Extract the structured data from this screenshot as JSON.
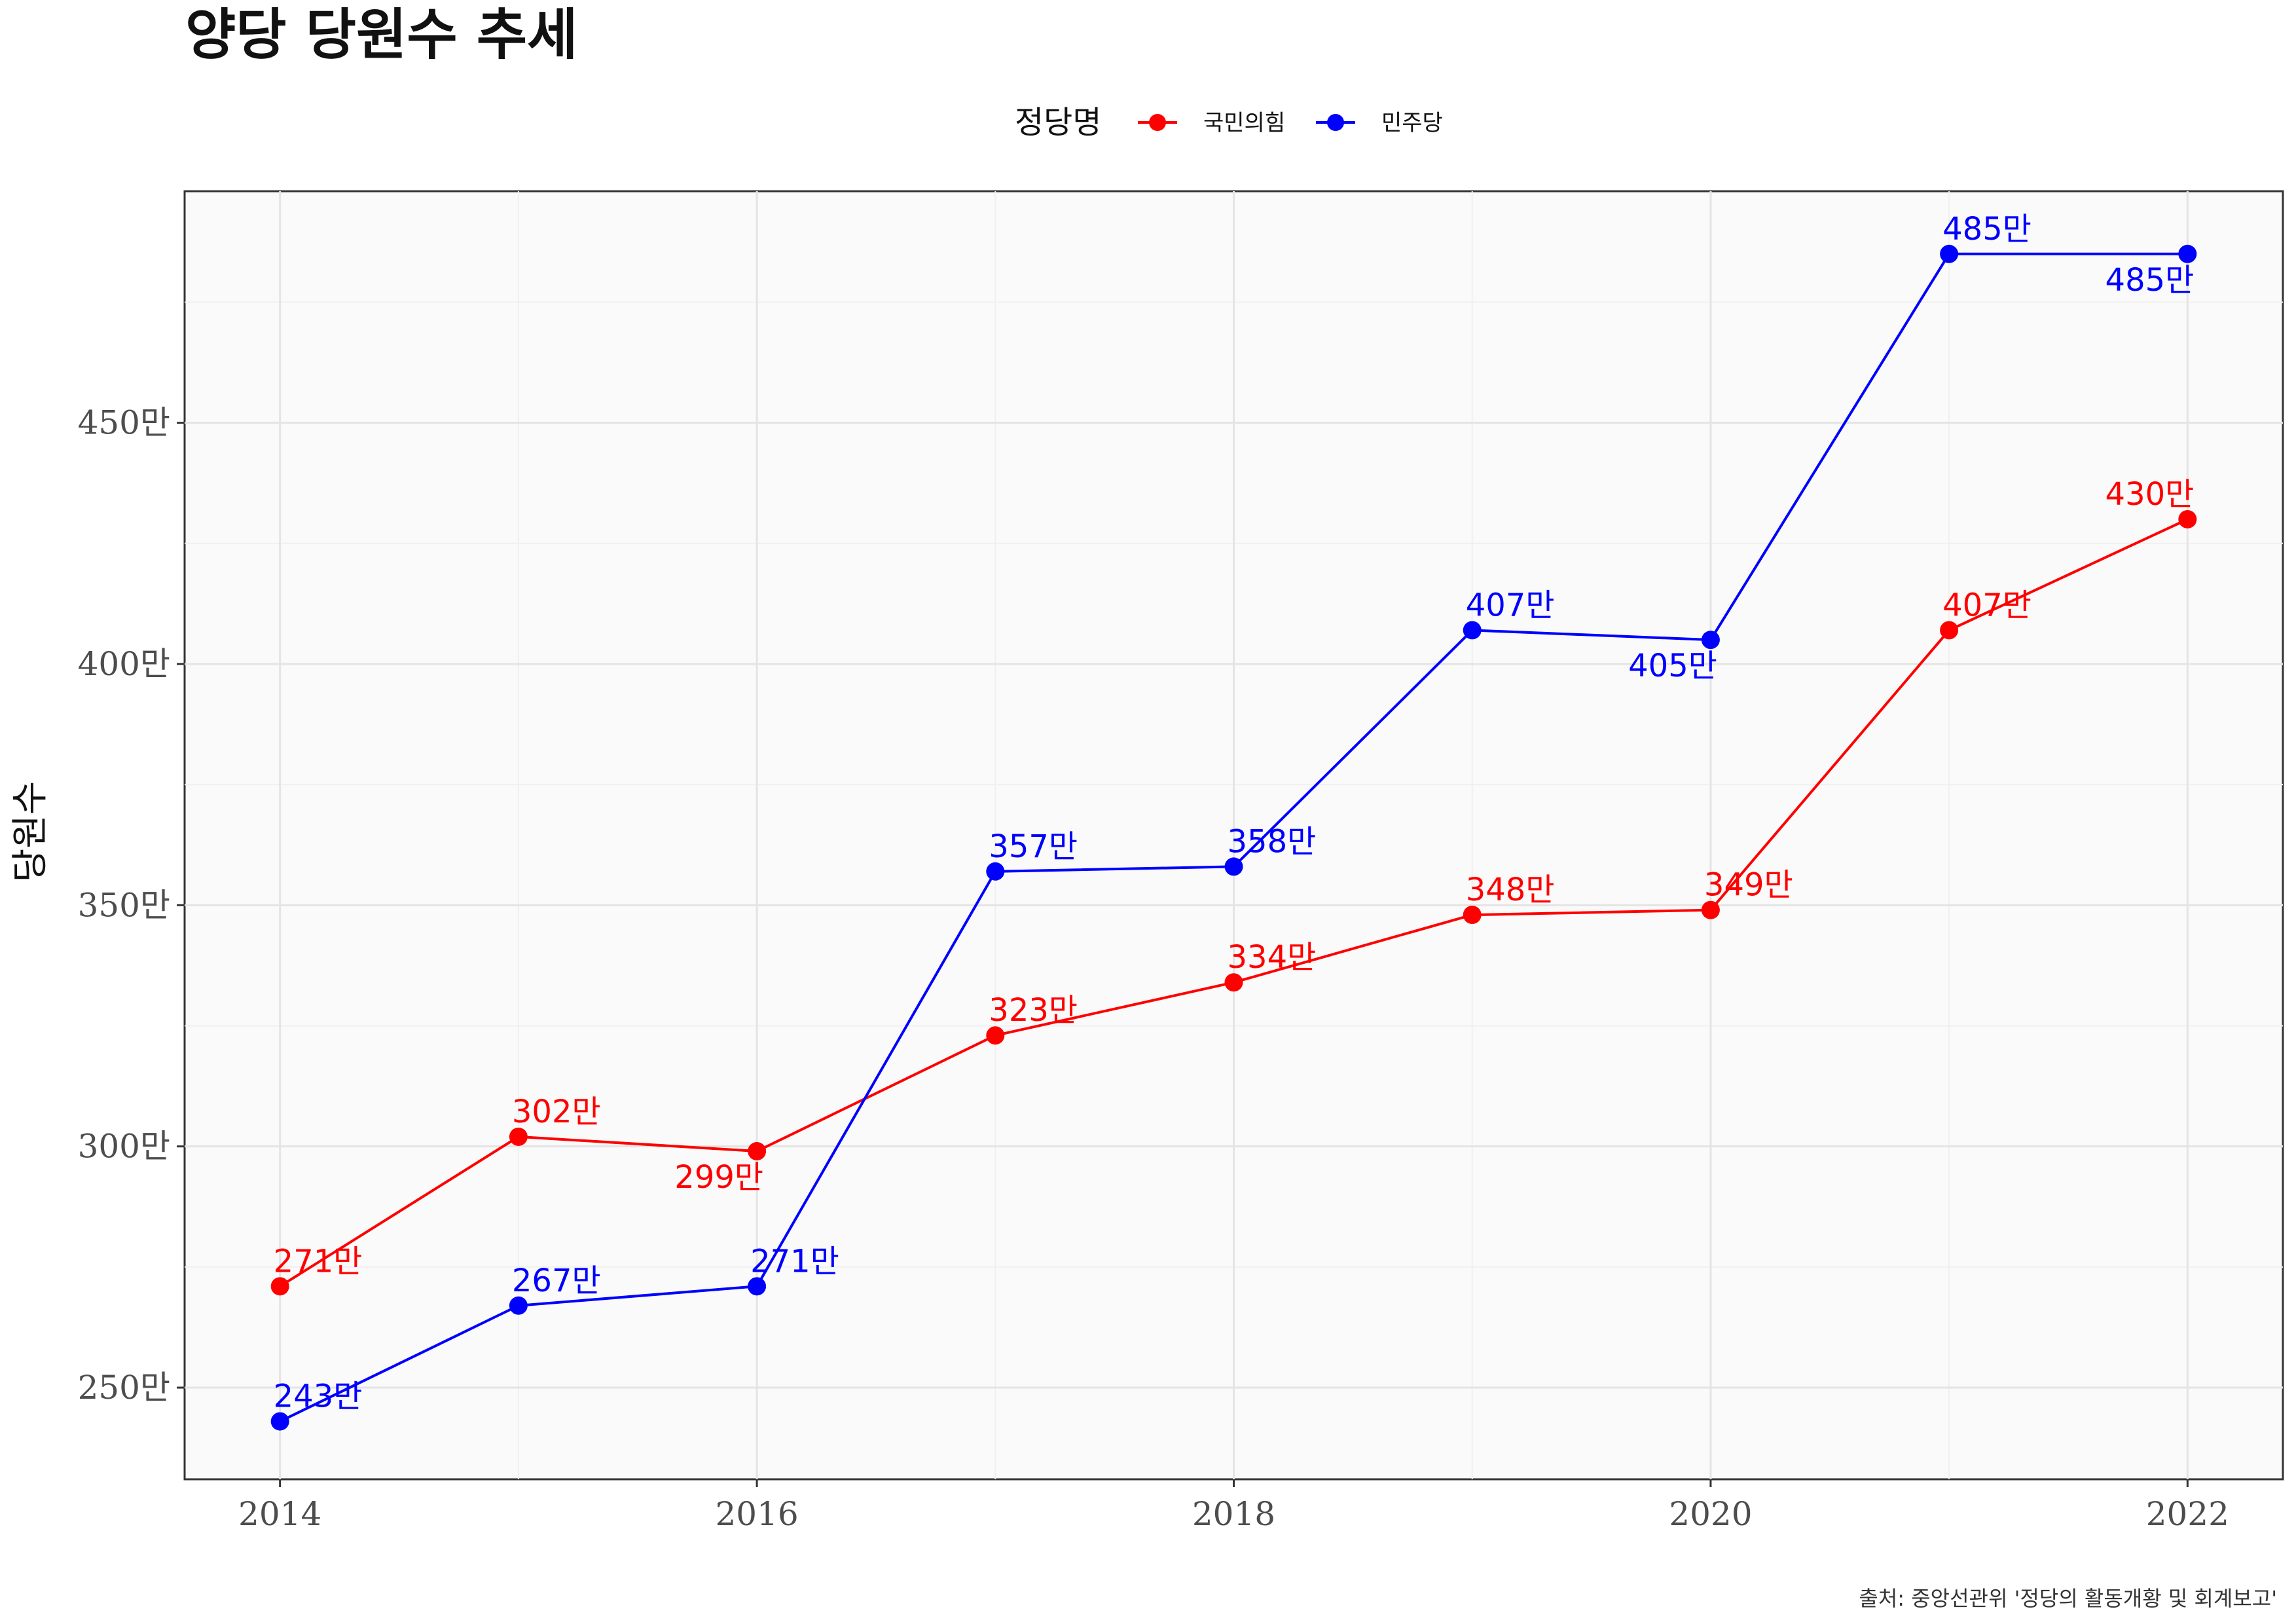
{
  "chart_data": {
    "type": "line",
    "title": "양당 당원수 추세",
    "ylabel": "당원수",
    "xlabel": "",
    "caption": "출처: 중앙선관위 '정당의 활동개황 및 회계보고'",
    "legend": {
      "title": "정당명",
      "position": "top"
    },
    "x": [
      2014,
      2015,
      2016,
      2017,
      2018,
      2019,
      2020,
      2021,
      2022
    ],
    "x_ticks": [
      2014,
      2016,
      2018,
      2020,
      2022
    ],
    "xlim": [
      2013.6,
      2022.4
    ],
    "y_ticks": [
      250,
      300,
      350,
      400,
      450
    ],
    "y_tick_labels": [
      "250만",
      "300만",
      "350만",
      "400만",
      "450만"
    ],
    "ylim": [
      231,
      498
    ],
    "grid": true,
    "series": [
      {
        "name": "국민의힘",
        "color": "#ff0000",
        "values": [
          271,
          302,
          299,
          323,
          334,
          348,
          349,
          407,
          430
        ],
        "labels": [
          "271만",
          "302만",
          "299만",
          "323만",
          "334만",
          "348만",
          "349만",
          "407만",
          "430만"
        ]
      },
      {
        "name": "민주당",
        "color": "#0000ff",
        "values": [
          243,
          267,
          271,
          357,
          358,
          407,
          405,
          485,
          485
        ],
        "labels": [
          "243만",
          "267만",
          "271만",
          "357만",
          "358만",
          "407만",
          "405만",
          "485만",
          "485만"
        ]
      }
    ]
  }
}
